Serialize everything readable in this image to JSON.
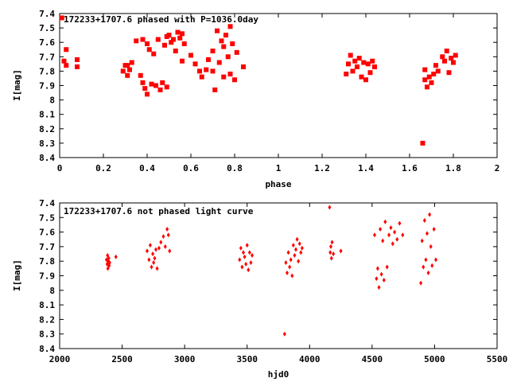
{
  "chart_data": [
    {
      "type": "scatter",
      "title": "172233+1707.6 phased with P=1036.0day",
      "xlabel": "phase",
      "ylabel": "I[mag]",
      "xlim": [
        0,
        2
      ],
      "ylim": [
        7.4,
        8.4
      ],
      "y_inverted": true,
      "xticks": [
        "0",
        "0.2",
        "0.4",
        "0.6",
        "0.8",
        "1",
        "1.2",
        "1.4",
        "1.6",
        "1.8",
        "2"
      ],
      "yticks": [
        "7.4",
        "7.5",
        "7.6",
        "7.7",
        "7.8",
        "7.9",
        "8",
        "8.1",
        "8.2",
        "8.3",
        "8.4"
      ],
      "marker": "square",
      "color": "#ff0000",
      "series": [
        {
          "x": [
            0.01,
            0.02,
            0.03,
            0.03,
            0.08,
            0.08,
            0.29,
            0.3,
            0.31,
            0.31,
            0.32,
            0.33,
            0.35,
            0.37,
            0.38,
            0.38,
            0.39,
            0.4,
            0.4,
            0.41,
            0.42,
            0.43,
            0.44,
            0.45,
            0.46,
            0.47,
            0.48,
            0.49,
            0.49,
            0.5,
            0.51,
            0.52,
            0.53,
            0.54,
            0.55,
            0.56,
            0.56,
            0.57,
            0.6,
            0.62,
            0.64,
            0.65,
            0.67,
            0.68,
            0.7,
            0.7,
            0.71,
            0.72,
            0.73,
            0.74,
            0.75,
            0.75,
            0.76,
            0.77,
            0.78,
            0.78,
            0.79,
            0.8,
            0.81,
            0.84,
            1.31,
            1.32,
            1.33,
            1.34,
            1.35,
            1.36,
            1.37,
            1.38,
            1.39,
            1.4,
            1.41,
            1.42,
            1.43,
            1.44,
            1.66,
            1.67,
            1.67,
            1.68,
            1.69,
            1.7,
            1.71,
            1.72,
            1.73,
            1.75,
            1.76,
            1.77,
            1.78,
            1.79,
            1.8,
            1.81
          ],
          "y": [
            7.43,
            7.73,
            7.65,
            7.76,
            7.72,
            7.77,
            7.8,
            7.76,
            7.83,
            7.76,
            7.79,
            7.74,
            7.59,
            7.83,
            7.58,
            7.88,
            7.92,
            7.96,
            7.61,
            7.65,
            7.89,
            7.68,
            7.9,
            7.58,
            7.93,
            7.88,
            7.62,
            7.56,
            7.91,
            7.55,
            7.6,
            7.58,
            7.66,
            7.53,
            7.57,
            7.54,
            7.73,
            7.61,
            7.69,
            7.75,
            7.8,
            7.84,
            7.79,
            7.72,
            7.8,
            7.66,
            7.93,
            7.52,
            7.74,
            7.59,
            7.84,
            7.63,
            7.55,
            7.7,
            7.49,
            7.82,
            7.61,
            7.86,
            7.67,
            7.77,
            7.82,
            7.75,
            7.69,
            7.8,
            7.73,
            7.77,
            7.71,
            7.84,
            7.74,
            7.86,
            7.75,
            7.81,
            7.73,
            7.77,
            8.3,
            7.86,
            7.79,
            7.91,
            7.84,
            7.88,
            7.82,
            7.76,
            7.8,
            7.7,
            7.73,
            7.66,
            7.81,
            7.71,
            7.74,
            7.69
          ]
        }
      ]
    },
    {
      "type": "scatter",
      "title": "172233+1707.6 not phased light curve",
      "xlabel": "hjd0",
      "ylabel": "I[mag]",
      "xlim": [
        2000,
        5500
      ],
      "ylim": [
        7.4,
        8.4
      ],
      "y_inverted": true,
      "xticks": [
        "2000",
        "2500",
        "3000",
        "3500",
        "4000",
        "4500",
        "5000",
        "5500"
      ],
      "yticks": [
        "7.4",
        "7.5",
        "7.6",
        "7.7",
        "7.8",
        "7.9",
        "8",
        "8.1",
        "8.2",
        "8.3",
        "8.4"
      ],
      "marker": "diamond",
      "color": "#ff0000",
      "series": [
        {
          "x": [
            2375,
            2380,
            2383,
            2386,
            2390,
            2393,
            2396,
            2400,
            2450,
            2700,
            2715,
            2725,
            2735,
            2745,
            2752,
            2760,
            2770,
            2780,
            2795,
            2810,
            2830,
            2845,
            2860,
            2870,
            2880,
            3440,
            3450,
            3460,
            3470,
            3480,
            3490,
            3500,
            3510,
            3520,
            3530,
            3540,
            3800,
            3810,
            3820,
            3830,
            3840,
            3850,
            3860,
            3870,
            3880,
            3890,
            3900,
            3910,
            3920,
            3930,
            3940,
            4160,
            4165,
            4170,
            4175,
            4180,
            4190,
            4250,
            4520,
            4535,
            4545,
            4555,
            4565,
            4575,
            4585,
            4595,
            4605,
            4620,
            4635,
            4650,
            4665,
            4680,
            4700,
            4720,
            4745,
            4890,
            4900,
            4910,
            4920,
            4930,
            4940,
            4950,
            4960,
            4970,
            4980,
            4995,
            5010
          ],
          "y": [
            7.79,
            7.82,
            7.76,
            7.85,
            7.8,
            7.78,
            7.83,
            7.81,
            7.77,
            7.73,
            7.79,
            7.69,
            7.84,
            7.75,
            7.81,
            7.78,
            7.72,
            7.85,
            7.71,
            7.67,
            7.63,
            7.7,
            7.58,
            7.62,
            7.73,
            7.79,
            7.71,
            7.84,
            7.74,
            7.77,
            7.82,
            7.69,
            7.86,
            7.74,
            7.81,
            7.76,
            8.3,
            7.81,
            7.88,
            7.74,
            7.84,
            7.79,
            7.9,
            7.69,
            7.76,
            7.72,
            7.65,
            7.8,
            7.68,
            7.74,
            7.71,
            7.43,
            7.74,
            7.7,
            7.78,
            7.67,
            7.75,
            7.73,
            7.62,
            7.92,
            7.85,
            7.98,
            7.58,
            7.89,
            7.66,
            7.93,
            7.53,
            7.84,
            7.62,
            7.57,
            7.68,
            7.6,
            7.65,
            7.54,
            7.62,
            7.95,
            7.66,
            7.84,
            7.52,
            7.79,
            7.61,
            7.88,
            7.48,
            7.7,
            7.83,
            7.58,
            7.79
          ]
        }
      ]
    }
  ]
}
